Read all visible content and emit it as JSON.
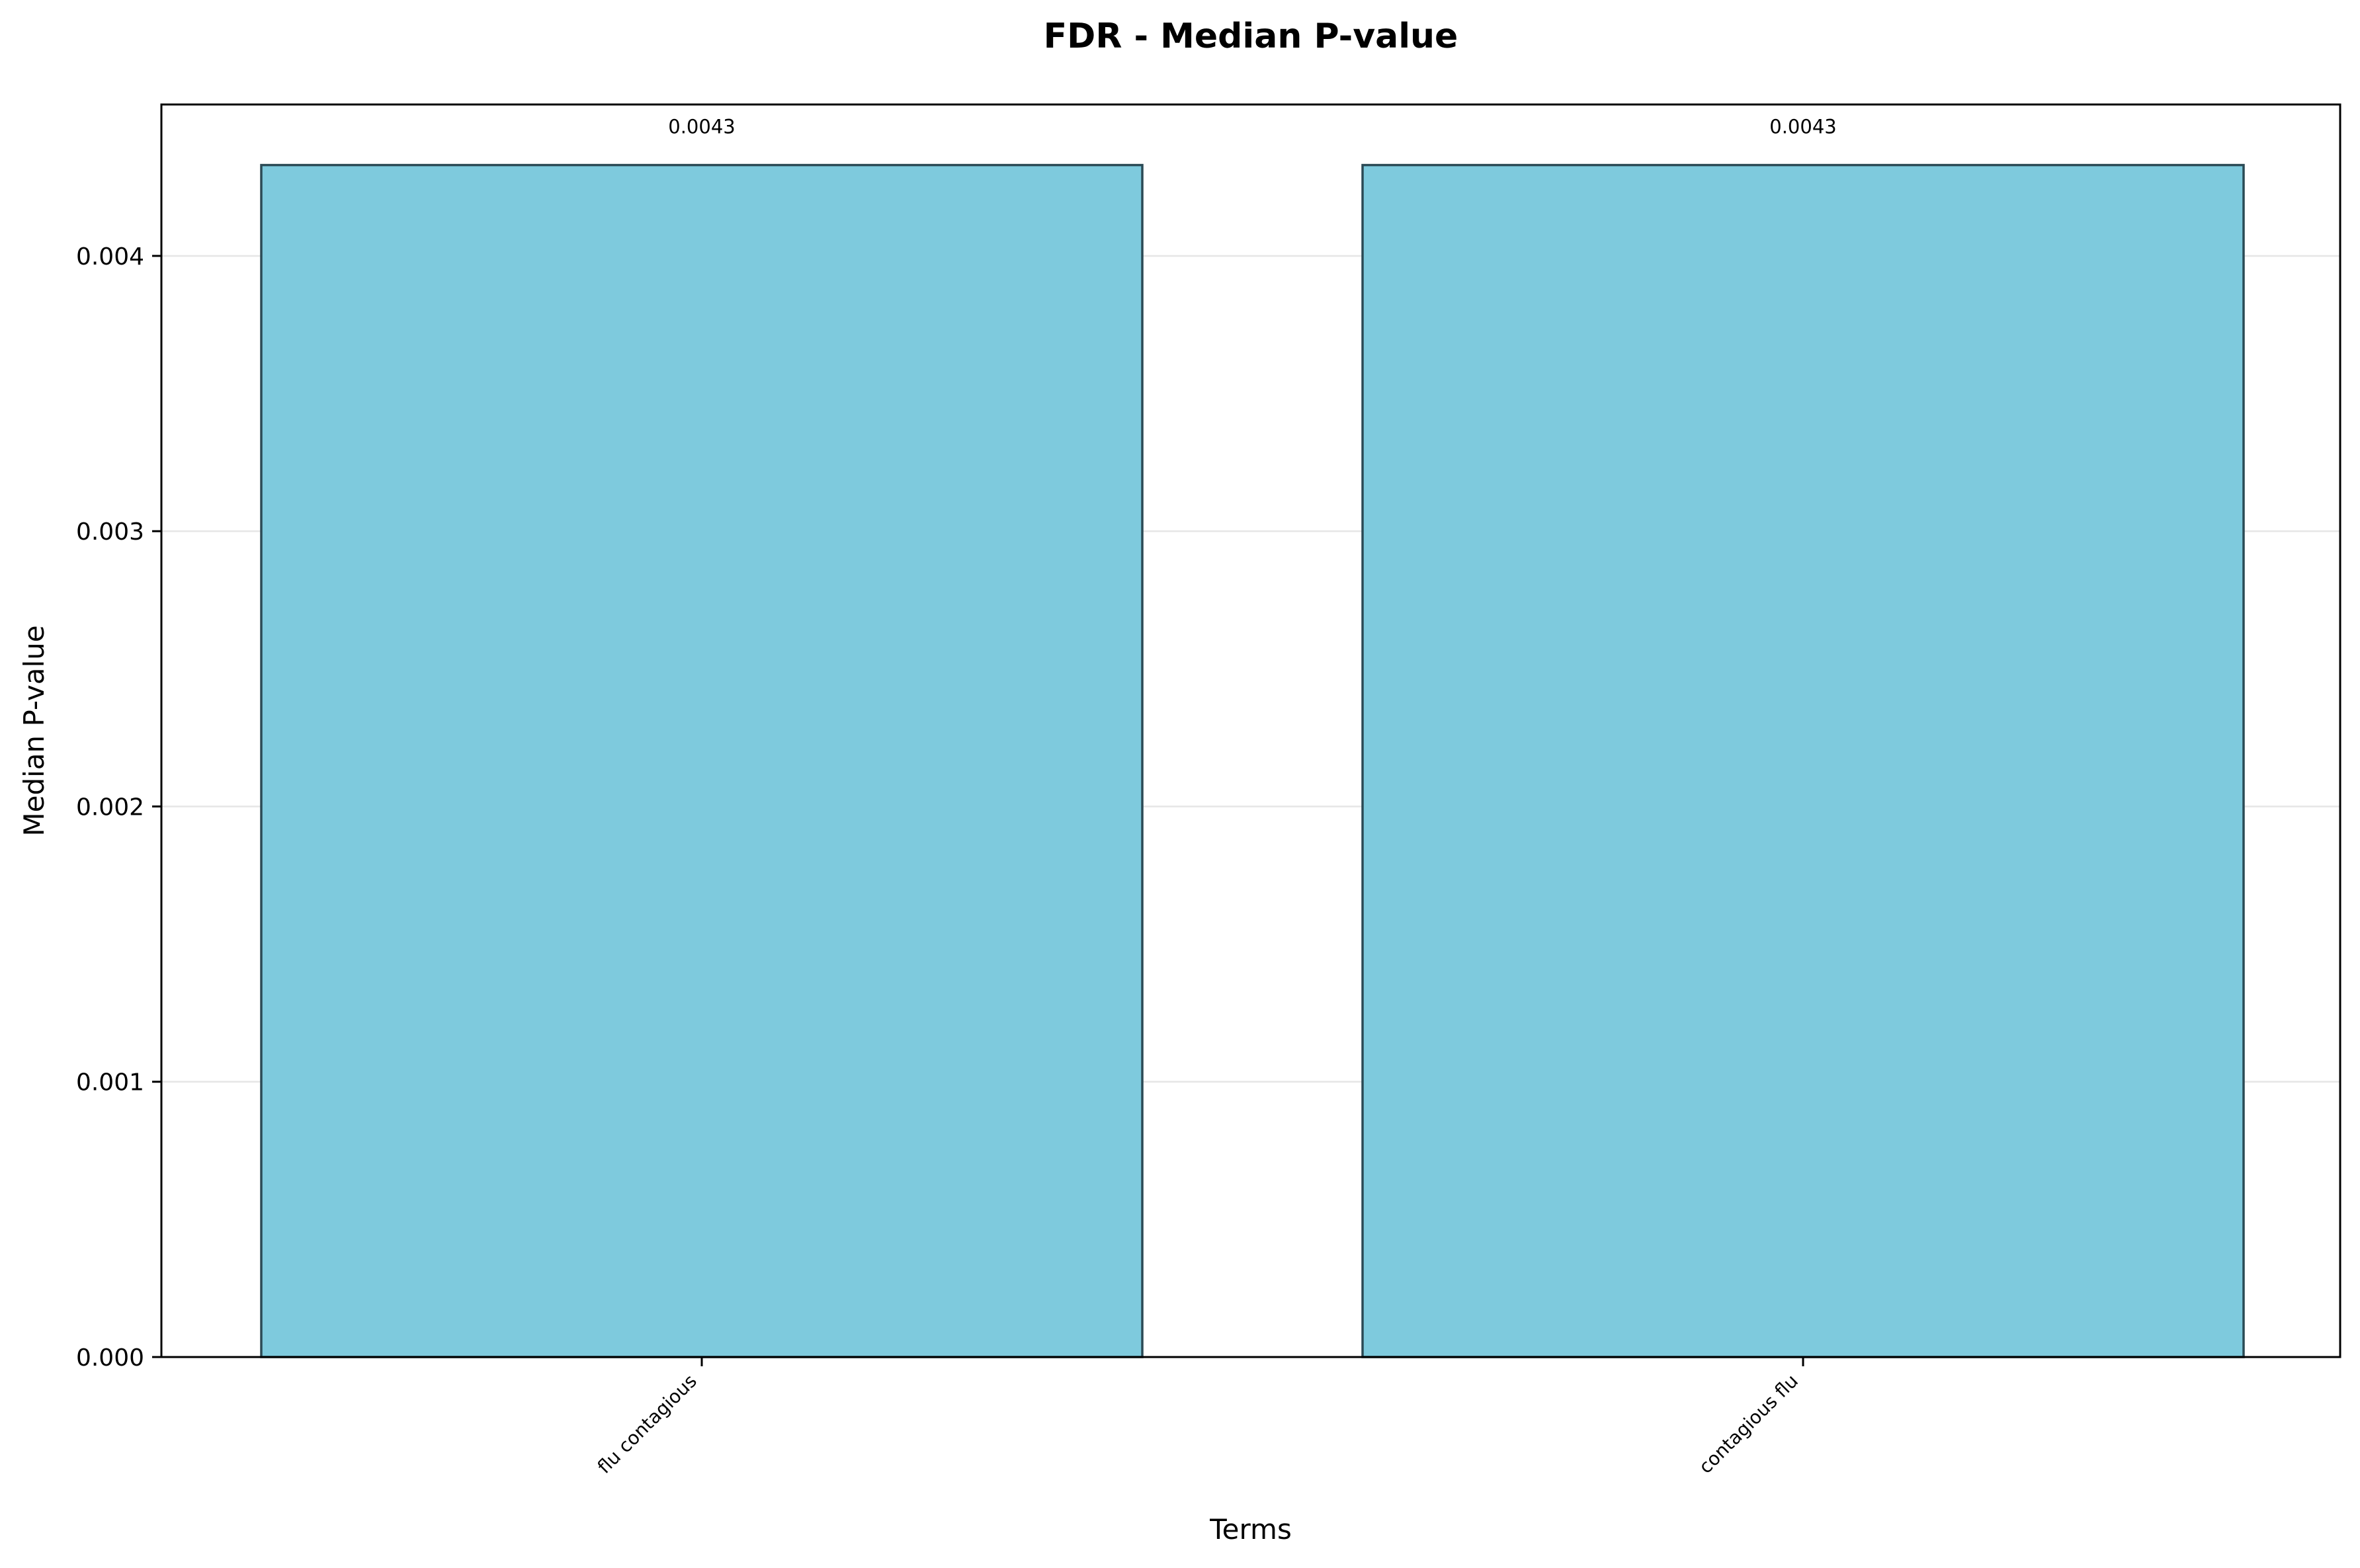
{
  "chart_data": {
    "type": "bar",
    "title": "FDR - Median P-value",
    "xlabel": "Terms",
    "ylabel": "Median P-value",
    "categories": [
      "flu contagious",
      "contagious flu"
    ],
    "values": [
      0.00433,
      0.00433
    ],
    "data_labels": [
      "0.0043",
      "0.0043"
    ],
    "ylim": [
      0,
      0.00455
    ],
    "yticks": [
      0,
      0.001,
      0.002,
      0.003,
      0.004
    ],
    "ytick_labels": [
      "0.000",
      "0.001",
      "0.002",
      "0.003",
      "0.004"
    ],
    "grid": "y",
    "legend": "none",
    "bar_color": "#7ecadd",
    "bar_edge_color": "#2b4a55",
    "grid_color": "#e6e6e6"
  }
}
